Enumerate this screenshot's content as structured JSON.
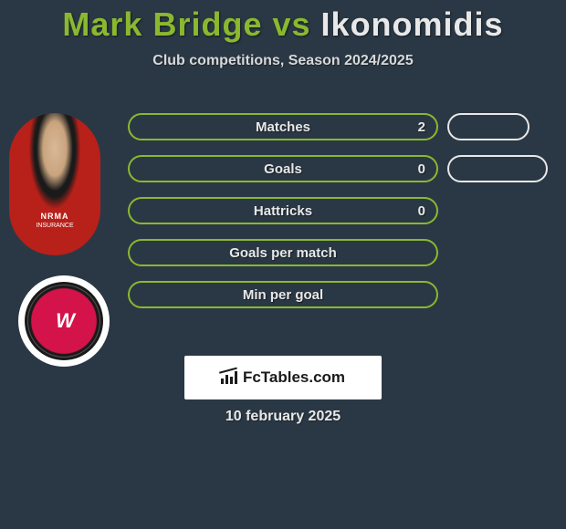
{
  "title": {
    "player1": "Mark Bridge",
    "vs": "vs",
    "player2": "Ikonomidis"
  },
  "subtitle": "Club competitions, Season 2024/2025",
  "stats": [
    {
      "label": "Matches",
      "value_left": "2",
      "has_right_pill": true,
      "pill_width": "short"
    },
    {
      "label": "Goals",
      "value_left": "0",
      "has_right_pill": true,
      "pill_width": "long"
    },
    {
      "label": "Hattricks",
      "value_left": "0",
      "has_right_pill": false
    },
    {
      "label": "Goals per match",
      "value_left": "",
      "has_right_pill": false
    },
    {
      "label": "Min per goal",
      "value_left": "",
      "has_right_pill": false
    }
  ],
  "colors": {
    "accent_green": "#8ab82f",
    "text_light": "#e8e8e8",
    "background": "#2a3845",
    "team_red": "#d4134a"
  },
  "footer": {
    "logo_text": "FcTables.com",
    "date": "10 february 2025"
  },
  "player_jersey": {
    "sponsor": "NRMA",
    "sponsor_sub": "INSURANCE"
  },
  "team_logo_text": "W"
}
